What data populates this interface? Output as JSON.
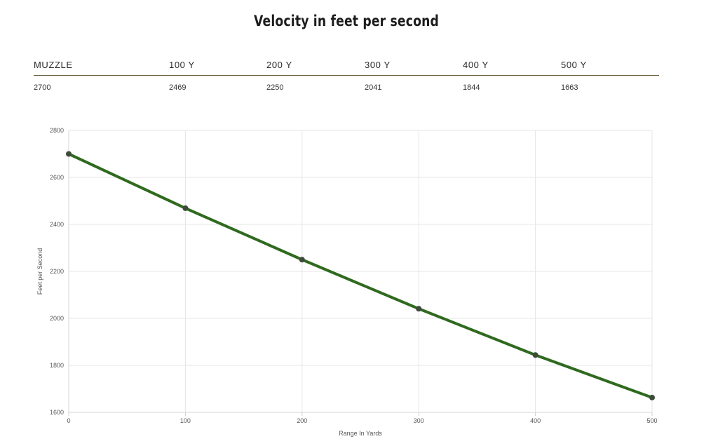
{
  "header": {
    "title": "Velocity in feet per second"
  },
  "velocity_table": {
    "columns": [
      "MUZZLE",
      "100 Y",
      "200 Y",
      "300 Y",
      "400 Y",
      "500 Y"
    ],
    "values": [
      "2700",
      "2469",
      "2250",
      "2041",
      "1844",
      "1663"
    ]
  },
  "chart_data": {
    "type": "line",
    "title": "",
    "xlabel": "Range In Yards",
    "ylabel": "Feet per Second",
    "x": [
      0,
      100,
      200,
      300,
      400,
      500
    ],
    "series": [
      {
        "values": [
          2700,
          2469,
          2250,
          2041,
          1844,
          1663
        ]
      }
    ],
    "xlim": [
      0,
      500
    ],
    "ylim": [
      1600,
      2800
    ],
    "x_ticks": [
      0,
      100,
      200,
      300,
      400,
      500
    ],
    "y_ticks": [
      1600,
      1800,
      2000,
      2200,
      2400,
      2600,
      2800
    ],
    "grid": true,
    "legend": "none",
    "colors": {
      "line": "#2f6a1f",
      "marker": "#3d4a3a",
      "grid": "#e6e6e6",
      "header_rule": "#6b5a3e"
    }
  }
}
